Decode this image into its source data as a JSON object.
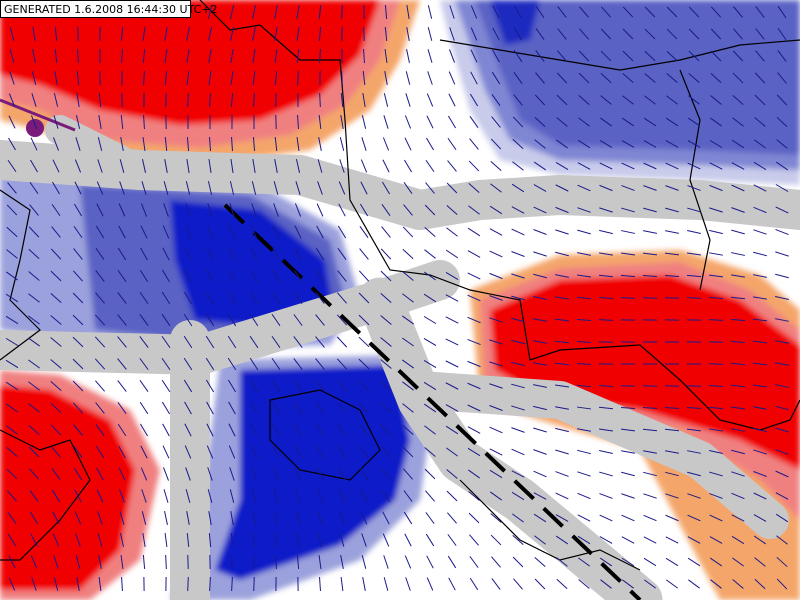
{
  "header": {
    "title": "GENERATED 1.6.2008 16:44:30 UTC+2"
  }
}
